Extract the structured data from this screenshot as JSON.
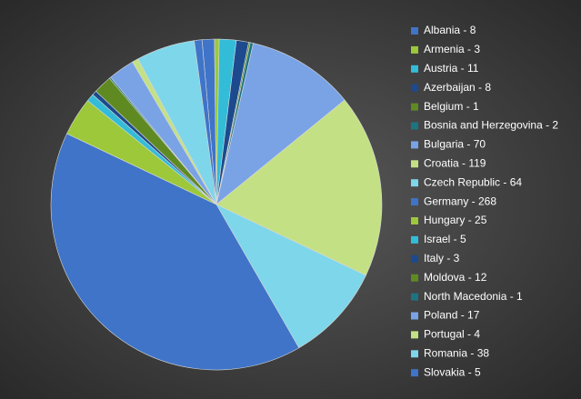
{
  "chart_data": {
    "type": "pie",
    "categories": [
      "Albania",
      "Armenia",
      "Austria",
      "Azerbaijan",
      "Belgium",
      "Bosnia and Herzegovina",
      "Bulgaria",
      "Croatia",
      "Czech Republic",
      "Germany",
      "Hungary",
      "Israel",
      "Italy",
      "Moldova",
      "North Macedonia",
      "Poland",
      "Portugal",
      "Romania",
      "Slovakia"
    ],
    "labels": [
      "Albania - 8",
      "Armenia - 3",
      "Austria - 11",
      "Azerbaijan - 8",
      "Belgium - 1",
      "Bosnia and Herzegovina - 2",
      "Bulgaria - 70",
      "Croatia - 119",
      "Czech Republic - 64",
      "Germany - 268",
      "Hungary - 25",
      "Israel - 5",
      "Italy - 3",
      "Moldova - 12",
      "North Macedonia - 1",
      "Poland - 17",
      "Portugal - 4",
      "Romania - 38",
      "Slovakia - 5"
    ],
    "values": [
      8,
      3,
      11,
      8,
      1,
      2,
      70,
      119,
      64,
      268,
      25,
      5,
      3,
      12,
      1,
      17,
      4,
      38,
      5
    ],
    "colors": [
      "#3f74c8",
      "#9cc83a",
      "#33bcd8",
      "#1d4a8e",
      "#5f8a22",
      "#1c7482",
      "#7aa3e6",
      "#c3e184",
      "#7ed6ea"
    ],
    "legend": "right"
  }
}
